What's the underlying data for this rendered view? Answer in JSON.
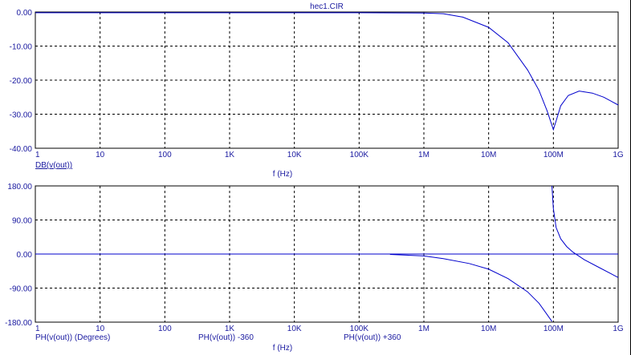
{
  "window": {
    "title": "hec1.CIR"
  },
  "colors": {
    "trace": "#0000cc",
    "text": "#1a1aa0",
    "axis": "#000000",
    "grid": "#000000"
  },
  "chart_data": [
    {
      "type": "line",
      "x_scale": "log",
      "xlim": [
        1,
        1000000000
      ],
      "ylim": [
        -40,
        0
      ],
      "grid": true,
      "x_ticks": [
        1,
        10,
        100,
        1000,
        10000,
        100000,
        1000000,
        10000000,
        100000000,
        1000000000
      ],
      "x_tick_labels": [
        "1",
        "10",
        "100",
        "1K",
        "10K",
        "100K",
        "1M",
        "10M",
        "100M",
        "1G"
      ],
      "y_ticks": [
        0,
        -10,
        -20,
        -30,
        -40
      ],
      "y_tick_labels": [
        "0.00",
        "-10.00",
        "-20.00",
        "-30.00",
        "-40.00"
      ],
      "xlabel": "f (Hz)",
      "legend": [
        "DB(v(out))"
      ],
      "series": [
        {
          "name": "DB(v(out))",
          "x": [
            1,
            100000,
            500000,
            1000000,
            2000000,
            4000000,
            10000000,
            20000000,
            40000000,
            60000000,
            80000000,
            100000000,
            110000000,
            130000000,
            170000000,
            250000000,
            400000000,
            600000000,
            1000000000
          ],
          "y": [
            -0.2,
            -0.2,
            -0.25,
            -0.3,
            -0.5,
            -1.5,
            -4.5,
            -9,
            -17,
            -23,
            -29,
            -34.5,
            -32,
            -27.5,
            -24.5,
            -23.2,
            -23.8,
            -25,
            -27.3
          ]
        }
      ]
    },
    {
      "type": "line",
      "x_scale": "log",
      "xlim": [
        1,
        1000000000
      ],
      "ylim": [
        -180,
        180
      ],
      "grid": true,
      "x_ticks": [
        1,
        10,
        100,
        1000,
        10000,
        100000,
        1000000,
        10000000,
        100000000,
        1000000000
      ],
      "x_tick_labels": [
        "1",
        "10",
        "100",
        "1K",
        "10K",
        "100K",
        "1M",
        "10M",
        "100M",
        "1G"
      ],
      "y_ticks": [
        180,
        90,
        0,
        -90,
        -180
      ],
      "y_tick_labels": [
        "180.00",
        "90.00",
        "0.00",
        "-90.00",
        "-180.00"
      ],
      "xlabel": "f (Hz)",
      "legend": [
        "PH(v(out)) (Degrees)",
        "PH(v(out)) -360",
        "PH(v(out)) +360"
      ],
      "series": [
        {
          "name": "PH(v(out)) (Degrees)",
          "x": [
            1,
            1000000000
          ],
          "y": [
            0,
            0
          ]
        },
        {
          "name": "PH(v(out)) -360",
          "x": [
            300000,
            1000000,
            2000000,
            5000000,
            10000000,
            20000000,
            40000000,
            60000000,
            80000000,
            95000000
          ],
          "y": [
            -1,
            -5,
            -12,
            -25,
            -40,
            -65,
            -100,
            -130,
            -160,
            -178
          ]
        },
        {
          "name": "PH(v(out)) +360",
          "x": [
            95000000,
            100000000,
            110000000,
            130000000,
            160000000,
            200000000,
            300000000,
            500000000,
            1000000000
          ],
          "y": [
            180,
            120,
            70,
            40,
            20,
            5,
            -15,
            -35,
            -62
          ]
        }
      ]
    }
  ]
}
